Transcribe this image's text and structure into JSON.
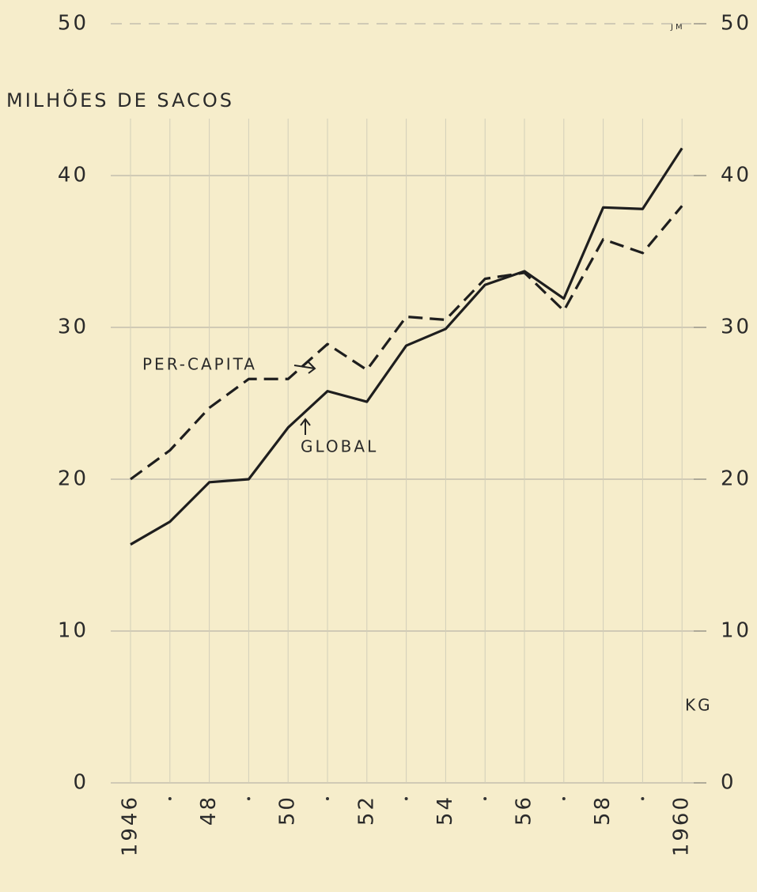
{
  "chart_data": {
    "type": "line",
    "ylabel": "MILHÕES DE SACOS",
    "y2label": "KG",
    "signature": "JM",
    "categories": [
      "1946",
      null,
      "48",
      null,
      "50",
      null,
      "52",
      null,
      "54",
      null,
      "56",
      null,
      "58",
      null,
      "1960"
    ],
    "series": [
      {
        "name": "GLOBAL",
        "color": "#1e1e1e",
        "style": "solid",
        "values": [
          15.7,
          17.2,
          19.8,
          20.0,
          23.4,
          25.8,
          25.1,
          28.8,
          29.9,
          32.8,
          33.7,
          31.9,
          37.9,
          37.8,
          41.8
        ]
      },
      {
        "name": "PER-CAPITA",
        "color": "#1e1e1e",
        "style": "dashed",
        "axis": "y2",
        "values": [
          20.0,
          21.9,
          24.7,
          26.6,
          26.6,
          28.9,
          27.2,
          30.7,
          30.5,
          33.2,
          33.6,
          31.1,
          35.8,
          34.9,
          38.0
        ]
      }
    ],
    "ylim": [
      0,
      50
    ],
    "yticks": [
      0,
      10,
      20,
      30,
      40,
      50
    ],
    "y2lim": [
      0,
      50
    ],
    "y2ticks": [
      0,
      10,
      20,
      30,
      40,
      50
    ],
    "grid": true
  }
}
